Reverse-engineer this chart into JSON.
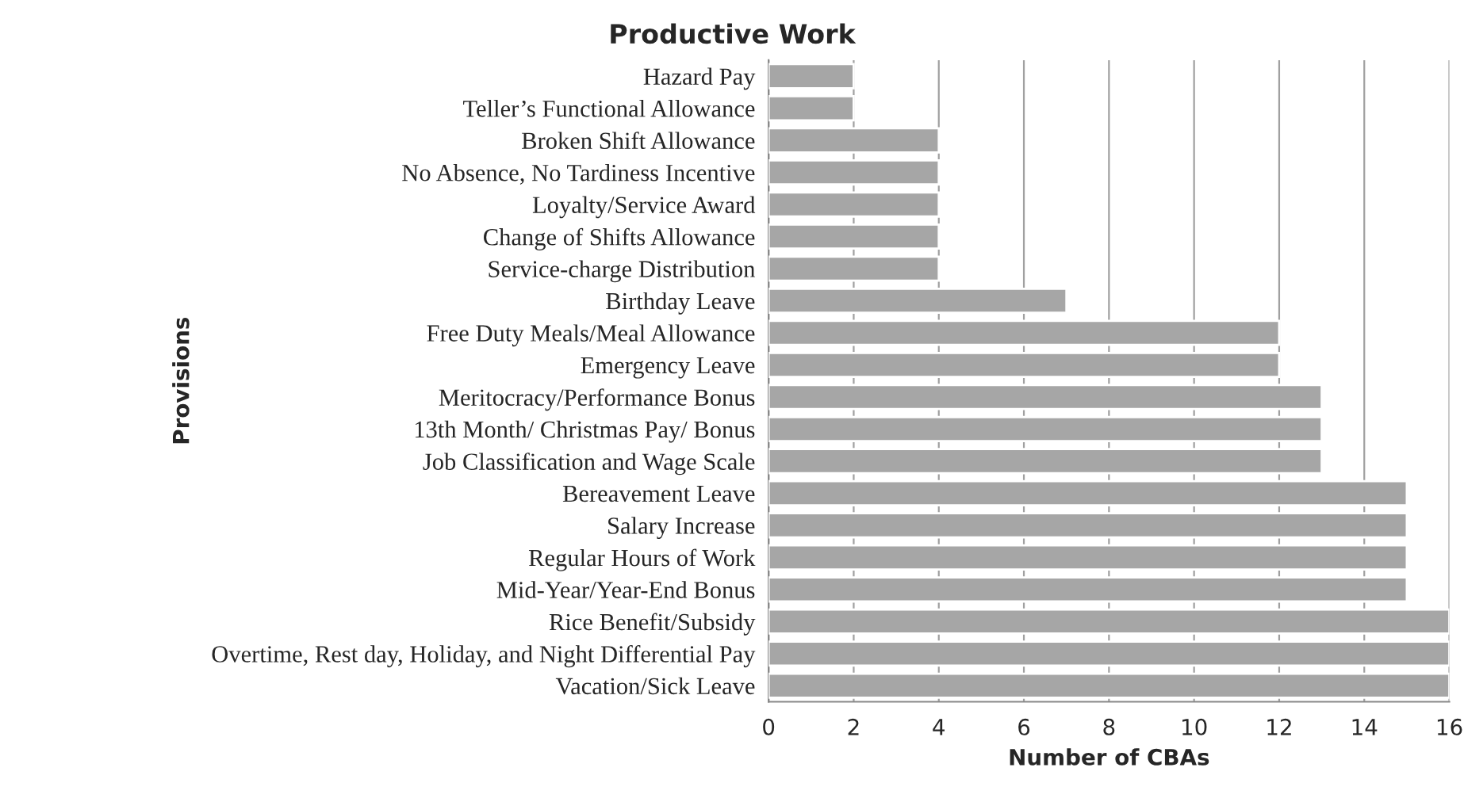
{
  "chart_data": {
    "type": "bar",
    "orientation": "horizontal",
    "title": "Productive Work",
    "xlabel": "Number of CBAs",
    "ylabel": "Provisions",
    "categories": [
      "Hazard Pay",
      "Teller’s Functional Allowance",
      "Broken Shift Allowance",
      "No Absence, No Tardiness Incentive",
      "Loyalty/Service Award",
      "Change of Shifts Allowance",
      "Service-charge Distribution",
      "Birthday Leave",
      "Free Duty Meals/Meal Allowance",
      "Emergency Leave",
      "Meritocracy/Performance Bonus",
      "13th Month/ Christmas Pay/ Bonus",
      "Job Classification and Wage Scale",
      "Bereavement Leave",
      "Salary Increase",
      "Regular Hours of Work",
      "Mid-Year/Year-End Bonus",
      "Rice Benefit/Subsidy",
      "Overtime, Rest day, Holiday, and Night Differential Pay",
      "Vacation/Sick Leave"
    ],
    "values": [
      2,
      2,
      4,
      4,
      4,
      4,
      4,
      7,
      12,
      12,
      13,
      13,
      13,
      15,
      15,
      15,
      15,
      16,
      16,
      16
    ],
    "color": "#a6a6a6",
    "xlim": [
      0,
      16
    ],
    "xticks": [
      0,
      2,
      4,
      6,
      8,
      10,
      12,
      14,
      16
    ],
    "grid": "x",
    "legend": false
  }
}
